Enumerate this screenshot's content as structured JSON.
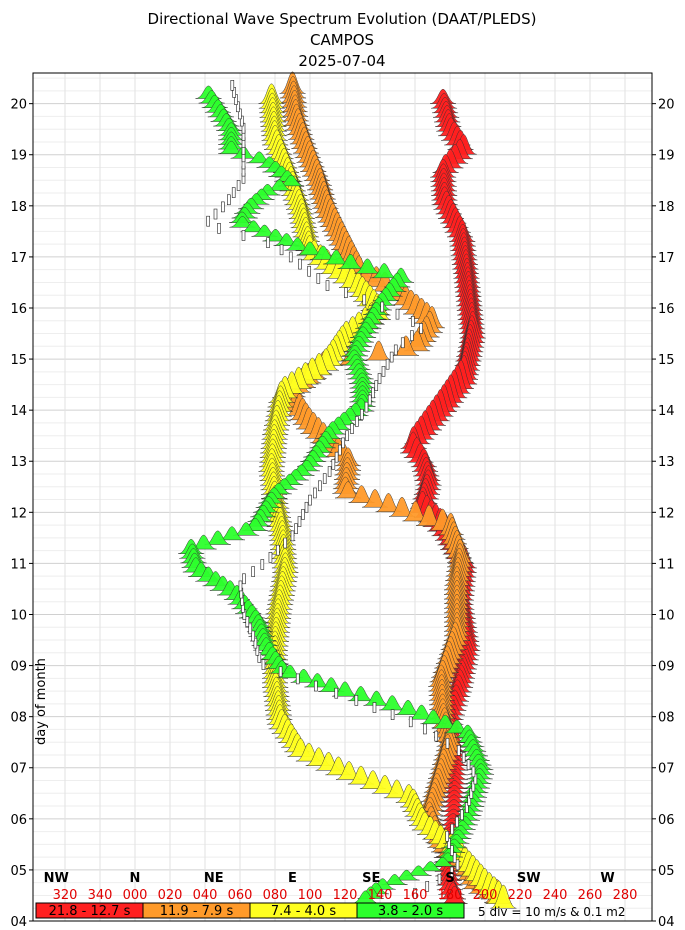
{
  "chart_data": {
    "type": "directional-wave-spectrum",
    "title": "Directional Wave Spectrum Evolution (DAAT/PLEDS)",
    "location": "CAMPOS",
    "date": "2025-07-04",
    "ylabel": "day of month",
    "ylim": [
      4,
      20.6
    ],
    "y_ticks": [
      "04",
      "05",
      "06",
      "07",
      "08",
      "09",
      "10",
      "11",
      "12",
      "13",
      "14",
      "15",
      "16",
      "17",
      "18",
      "19",
      "20"
    ],
    "xlim": [
      310,
      290
    ],
    "cardinal_directions": [
      {
        "label": "NW",
        "deg": 315
      },
      {
        "label": "N",
        "deg": 0
      },
      {
        "label": "NE",
        "deg": 45
      },
      {
        "label": "E",
        "deg": 90
      },
      {
        "label": "SE",
        "deg": 135
      },
      {
        "label": "S",
        "deg": 180
      },
      {
        "label": "SW",
        "deg": 225
      },
      {
        "label": "W",
        "deg": 270
      }
    ],
    "degree_ticks": [
      "320",
      "340",
      "000",
      "020",
      "040",
      "060",
      "080",
      "100",
      "120",
      "140",
      "160",
      "180",
      "200",
      "220",
      "240",
      "260",
      "280"
    ],
    "period_bands": [
      {
        "label": "21.8 - 12.7 s",
        "color": "#ff2020"
      },
      {
        "label": "11.9 - 7.9 s",
        "color": "#ff9a2a"
      },
      {
        "label": "7.4 - 4.0 s",
        "color": "#ffff20"
      },
      {
        "label": "3.8 - 2.0 s",
        "color": "#2cff2c"
      }
    ],
    "scale_note": "5 div = 10 m/s & 0.1 m2",
    "series": [
      {
        "band": "21.8 - 12.7 s",
        "points": [
          [
            4.3,
            183
          ],
          [
            4.6,
            180
          ],
          [
            5.2,
            178
          ],
          [
            6.0,
            182
          ],
          [
            7.0,
            183
          ],
          [
            7.9,
            180
          ],
          [
            8.6,
            186
          ],
          [
            9.3,
            190
          ],
          [
            10.2,
            186
          ],
          [
            10.9,
            188
          ],
          [
            11.5,
            178
          ],
          [
            12.0,
            164
          ],
          [
            12.5,
            168
          ],
          [
            12.9,
            165
          ],
          [
            13.2,
            158
          ],
          [
            13.9,
            175
          ],
          [
            14.5,
            188
          ],
          [
            15.4,
            193
          ],
          [
            16.4,
            190
          ],
          [
            17.3,
            187
          ],
          [
            18.0,
            177
          ],
          [
            18.6,
            176
          ],
          [
            19.0,
            188
          ],
          [
            19.4,
            180
          ],
          [
            20.0,
            176
          ]
        ],
        "amplitude": [
          1.0,
          0.8,
          0.5,
          0.4,
          0.5,
          0.8,
          1.0,
          1.1,
          1.2,
          1.3,
          1.3,
          1.2,
          1.1,
          1.0,
          1.2,
          1.5,
          1.6,
          1.5,
          1.4,
          1.2,
          1.0,
          1.0,
          1.1,
          1.0,
          0.8
        ]
      },
      {
        "band": "11.9 - 7.9 s",
        "points": [
          [
            4.3,
            210
          ],
          [
            4.6,
            195
          ],
          [
            5.0,
            188
          ],
          [
            5.4,
            175
          ],
          [
            6.0,
            168
          ],
          [
            6.8,
            175
          ],
          [
            7.4,
            180
          ],
          [
            7.9,
            176
          ],
          [
            8.6,
            175
          ],
          [
            9.5,
            184
          ],
          [
            10.5,
            184
          ],
          [
            11.0,
            186
          ],
          [
            11.6,
            180
          ],
          [
            12.3,
            120
          ],
          [
            12.9,
            122
          ],
          [
            13.6,
            100
          ],
          [
            14.2,
            88
          ],
          [
            14.8,
            108
          ],
          [
            15.1,
            160
          ],
          [
            15.6,
            170
          ],
          [
            16.2,
            150
          ],
          [
            16.6,
            128
          ],
          [
            17.1,
            120
          ],
          [
            17.8,
            110
          ],
          [
            18.4,
            105
          ],
          [
            19.0,
            98
          ],
          [
            19.6,
            92
          ],
          [
            20.2,
            90
          ]
        ],
        "amplitude": [
          1.3,
          1.2,
          1.1,
          1.0,
          1.0,
          1.1,
          1.2,
          1.1,
          1.2,
          1.3,
          1.3,
          1.3,
          1.2,
          0.9,
          1.0,
          1.2,
          1.2,
          1.0,
          1.1,
          1.2,
          1.0,
          1.2,
          1.3,
          1.3,
          1.2,
          1.2,
          1.2,
          1.2
        ]
      },
      {
        "band": "7.4 - 4.0 s",
        "points": [
          [
            4.2,
            212
          ],
          [
            4.6,
            200
          ],
          [
            5.2,
            185
          ],
          [
            5.8,
            165
          ],
          [
            6.3,
            158
          ],
          [
            6.8,
            120
          ],
          [
            7.2,
            95
          ],
          [
            7.8,
            83
          ],
          [
            8.6,
            80
          ],
          [
            9.3,
            80
          ],
          [
            10.0,
            82
          ],
          [
            10.8,
            86
          ],
          [
            11.5,
            84
          ],
          [
            12.2,
            80
          ],
          [
            12.8,
            78
          ],
          [
            13.5,
            80
          ],
          [
            14.2,
            84
          ],
          [
            14.8,
            110
          ],
          [
            15.3,
            120
          ],
          [
            15.8,
            140
          ],
          [
            16.3,
            128
          ],
          [
            17.0,
            100
          ],
          [
            17.8,
            95
          ],
          [
            18.5,
            88
          ],
          [
            19.2,
            80
          ],
          [
            20.0,
            78
          ]
        ],
        "amplitude": [
          1.3,
          1.2,
          1.1,
          1.0,
          1.0,
          1.0,
          1.0,
          1.1,
          1.1,
          1.1,
          1.1,
          1.1,
          1.1,
          1.0,
          1.0,
          1.1,
          1.2,
          1.2,
          1.2,
          1.2,
          1.1,
          1.1,
          1.1,
          1.1,
          1.1,
          1.1
        ]
      },
      {
        "band": "3.8 - 2.0 s",
        "points": [
          [
            4.3,
            130
          ],
          [
            4.6,
            140
          ],
          [
            5.1,
            178
          ],
          [
            6.0,
            190
          ],
          [
            6.9,
            198
          ],
          [
            7.6,
            190
          ],
          [
            8.0,
            160
          ],
          [
            8.4,
            120
          ],
          [
            8.8,
            85
          ],
          [
            9.3,
            75
          ],
          [
            9.8,
            70
          ],
          [
            10.3,
            58
          ],
          [
            10.8,
            35
          ],
          [
            11.2,
            32
          ],
          [
            11.6,
            68
          ],
          [
            12.3,
            80
          ],
          [
            12.8,
            98
          ],
          [
            13.5,
            112
          ],
          [
            14.0,
            130
          ],
          [
            14.5,
            130
          ],
          [
            15.0,
            125
          ],
          [
            15.4,
            130
          ],
          [
            16.0,
            140
          ],
          [
            16.5,
            152
          ],
          [
            16.8,
            120
          ],
          [
            17.1,
            95
          ],
          [
            17.6,
            60
          ],
          [
            17.9,
            65
          ],
          [
            18.2,
            75
          ],
          [
            18.4,
            90
          ],
          [
            18.8,
            75
          ],
          [
            19.0,
            55
          ],
          [
            19.4,
            55
          ],
          [
            19.8,
            48
          ],
          [
            20.1,
            42
          ]
        ],
        "amplitude": [
          0.7,
          0.6,
          0.5,
          0.5,
          0.6,
          0.7,
          0.8,
          0.8,
          0.7,
          0.7,
          0.7,
          0.8,
          0.8,
          0.8,
          0.7,
          0.6,
          0.6,
          0.7,
          0.7,
          0.6,
          0.6,
          0.6,
          0.7,
          0.8,
          0.8,
          0.7,
          0.6,
          0.6,
          0.6,
          0.6,
          0.6,
          0.7,
          0.7,
          0.7,
          0.7
        ]
      },
      {
        "band": "wind",
        "points": [
          [
            4.5,
            160
          ],
          [
            5.0,
            185
          ],
          [
            5.6,
            178
          ],
          [
            6.2,
            190
          ],
          [
            6.8,
            195
          ],
          [
            7.3,
            185
          ],
          [
            7.8,
            162
          ],
          [
            8.3,
            125
          ],
          [
            8.6,
            100
          ],
          [
            9.0,
            72
          ],
          [
            9.5,
            68
          ],
          [
            10.0,
            62
          ],
          [
            10.6,
            60
          ],
          [
            11.0,
            75
          ],
          [
            11.5,
            90
          ],
          [
            12.2,
            100
          ],
          [
            12.8,
            112
          ],
          [
            13.4,
            120
          ],
          [
            14.0,
            132
          ],
          [
            14.6,
            140
          ],
          [
            15.2,
            150
          ],
          [
            15.6,
            165
          ],
          [
            16.0,
            140
          ],
          [
            16.4,
            110
          ],
          [
            16.8,
            95
          ],
          [
            17.2,
            80
          ],
          [
            17.6,
            40
          ],
          [
            18.0,
            52
          ],
          [
            18.5,
            62
          ],
          [
            19.0,
            62
          ],
          [
            19.5,
            62
          ],
          [
            20.0,
            58
          ],
          [
            20.4,
            55
          ]
        ]
      }
    ]
  }
}
